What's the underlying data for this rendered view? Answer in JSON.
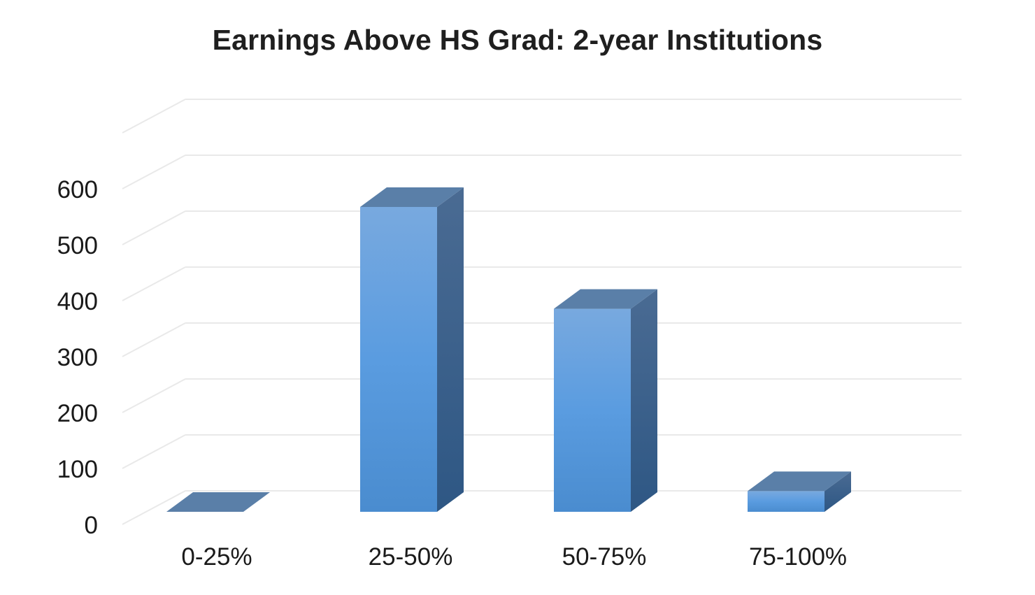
{
  "chart_data": {
    "type": "bar",
    "title": "Earnings Above HS Grad: 2-year Institutions",
    "xlabel": "",
    "ylabel": "",
    "categories": [
      "0-25%",
      "25-50%",
      "50-75%",
      "75-100%"
    ],
    "values": [
      0,
      545,
      363,
      37
    ],
    "ylim": [
      0,
      600
    ],
    "yticks": [
      0,
      100,
      200,
      300,
      400,
      500,
      600
    ],
    "grid": true,
    "legend": "none",
    "style": "3d-column",
    "colors": {
      "front_top": "#78a9df",
      "front_bottom": "#4a8ccf",
      "top": "#5a7fa8",
      "side_top": "#4a6b93",
      "side_bottom": "#2e5784",
      "grid": "#e9e9e9",
      "text": "#1a1a1a"
    }
  }
}
